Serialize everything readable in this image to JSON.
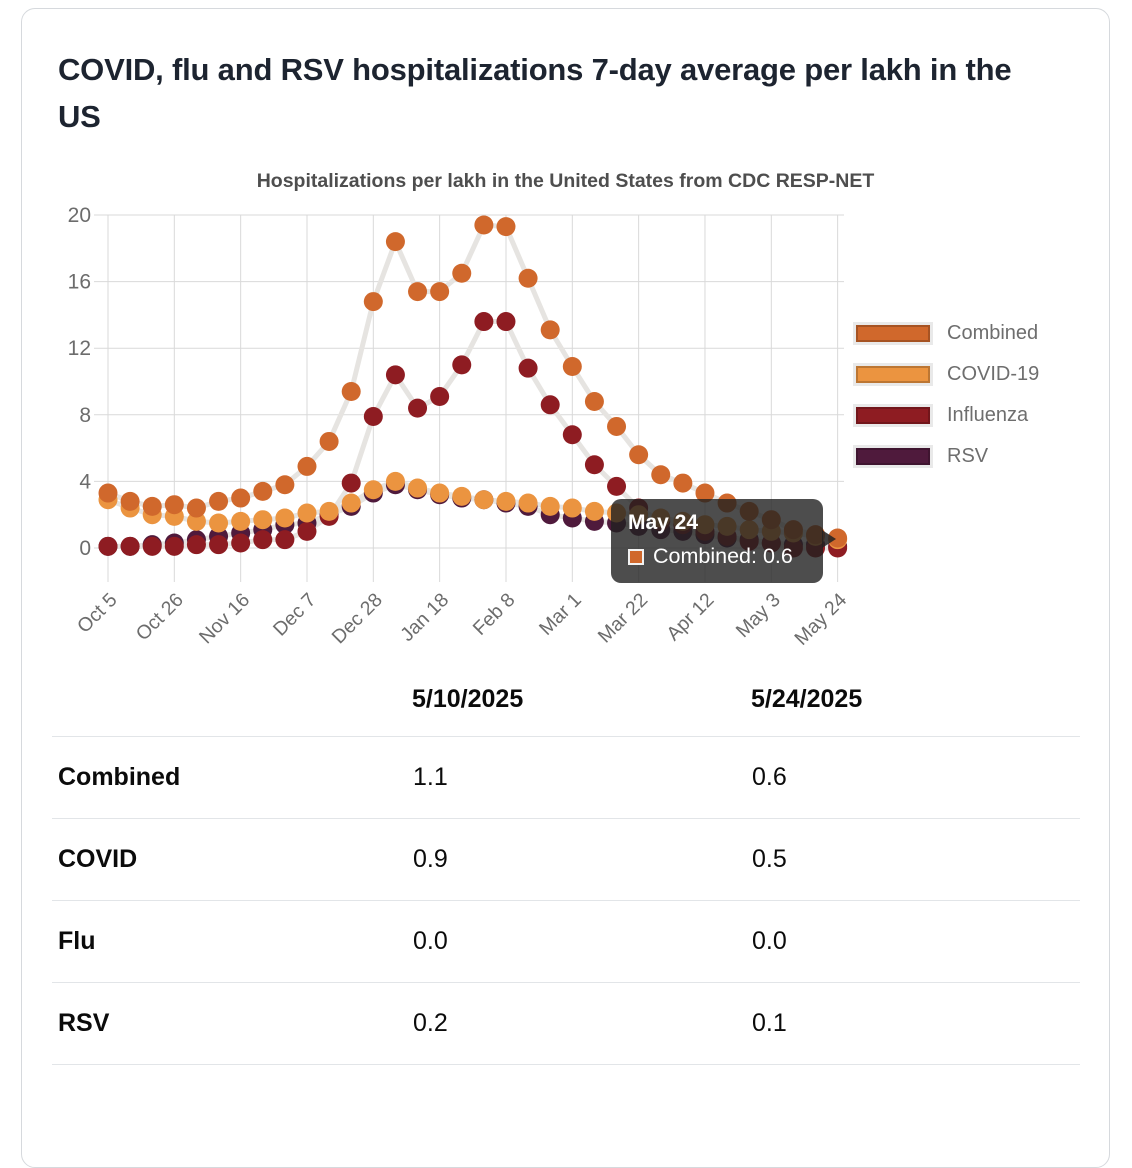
{
  "page": {
    "title": "COVID, flu and RSV hospitalizations 7-day average per lakh in the US"
  },
  "chart_data": {
    "type": "line",
    "title": "Hospitalizations per lakh in the United States from CDC RESP-NET",
    "x": [
      "Oct 5",
      "Oct 12",
      "Oct 19",
      "Oct 26",
      "Nov 2",
      "Nov 9",
      "Nov 16",
      "Nov 23",
      "Nov 30",
      "Dec 7",
      "Dec 14",
      "Dec 21",
      "Dec 28",
      "Jan 4",
      "Jan 11",
      "Jan 18",
      "Jan 25",
      "Feb 1",
      "Feb 8",
      "Feb 15",
      "Feb 22",
      "Mar 1",
      "Mar 8",
      "Mar 15",
      "Mar 22",
      "Mar 29",
      "Apr 5",
      "Apr 12",
      "Apr 19",
      "Apr 26",
      "May 3",
      "May 10",
      "May 17",
      "May 24"
    ],
    "x_tick_labels": [
      "Oct 5",
      "Oct 26",
      "Nov 16",
      "Dec 7",
      "Dec 28",
      "Jan 18",
      "Feb 8",
      "Mar 1",
      "Mar 22",
      "Apr 12",
      "May 3",
      "May 24"
    ],
    "y_ticks": [
      0,
      4,
      8,
      12,
      16,
      20
    ],
    "ylim": [
      0,
      20
    ],
    "grid": true,
    "legend_position": "right",
    "line_color": "#e6e4e1",
    "grid_color": "#d9d9d9",
    "axis_label_color": "#6c6c6c",
    "series": [
      {
        "name": "Combined",
        "color": "#d0682c",
        "values": [
          3.3,
          2.8,
          2.5,
          2.6,
          2.4,
          2.8,
          3.0,
          3.4,
          3.8,
          4.9,
          6.4,
          9.4,
          14.8,
          18.4,
          15.4,
          15.4,
          16.5,
          19.4,
          19.3,
          16.2,
          13.1,
          10.9,
          8.8,
          7.3,
          5.6,
          4.4,
          3.9,
          3.3,
          2.7,
          2.2,
          1.7,
          1.1,
          0.8,
          0.6
        ]
      },
      {
        "name": "COVID-19",
        "color": "#eb9440",
        "values": [
          2.9,
          2.4,
          2.0,
          1.9,
          1.6,
          1.5,
          1.6,
          1.7,
          1.8,
          2.1,
          2.2,
          2.7,
          3.5,
          4.0,
          3.6,
          3.3,
          3.1,
          2.9,
          2.8,
          2.7,
          2.5,
          2.4,
          2.2,
          2.1,
          2.0,
          1.8,
          1.6,
          1.4,
          1.3,
          1.1,
          1.0,
          0.9,
          0.7,
          0.5
        ]
      },
      {
        "name": "Influenza",
        "color": "#8e1c22",
        "values": [
          0.1,
          0.1,
          0.1,
          0.1,
          0.2,
          0.2,
          0.3,
          0.5,
          0.5,
          1.0,
          1.9,
          3.9,
          7.9,
          10.4,
          8.4,
          9.1,
          11.0,
          13.6,
          13.6,
          10.8,
          8.6,
          6.8,
          5.0,
          3.7,
          2.4,
          1.6,
          1.4,
          1.0,
          0.7,
          0.4,
          0.3,
          0.0,
          0.0,
          0.0
        ]
      },
      {
        "name": "RSV",
        "color": "#4f1a3c",
        "values": [
          0.1,
          0.1,
          0.2,
          0.3,
          0.5,
          0.7,
          0.9,
          1.1,
          1.4,
          1.5,
          2.0,
          2.5,
          3.3,
          3.8,
          3.5,
          3.2,
          3.0,
          2.9,
          2.7,
          2.5,
          2.0,
          1.8,
          1.6,
          1.5,
          1.3,
          1.1,
          1.0,
          0.8,
          0.6,
          0.5,
          0.3,
          0.2,
          0.2,
          0.1
        ]
      }
    ]
  },
  "tooltip": {
    "date": "May 24",
    "series": "Combined",
    "text": "Combined: 0.6",
    "value": "0.6"
  },
  "table": {
    "columns": [
      "5/10/2025",
      "5/24/2025"
    ],
    "rows": [
      {
        "label": "Combined",
        "values": [
          "1.1",
          "0.6"
        ]
      },
      {
        "label": "COVID",
        "values": [
          "0.9",
          "0.5"
        ]
      },
      {
        "label": "Flu",
        "values": [
          "0.0",
          "0.0"
        ]
      },
      {
        "label": "RSV",
        "values": [
          "0.2",
          "0.1"
        ]
      }
    ]
  }
}
